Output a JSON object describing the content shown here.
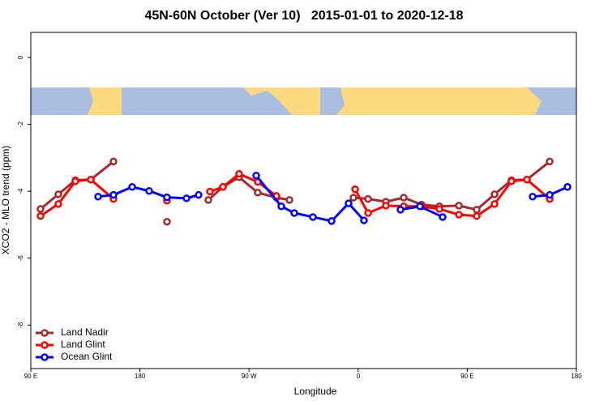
{
  "chart_data": {
    "type": "line",
    "title": "45N-60N October (Ver 10)   2015-01-01 to 2020-12-18",
    "xlabel": "Longitude",
    "ylabel": "XCO2 - MLO trend (ppm)",
    "xlim": [
      90,
      540
    ],
    "ylim": [
      -9.3,
      0.75
    ],
    "xticks": [
      {
        "value": 90,
        "label": "90 E"
      },
      {
        "value": 180,
        "label": "180"
      },
      {
        "value": 270,
        "label": "90 W"
      },
      {
        "value": 360,
        "label": "0"
      },
      {
        "value": 450,
        "label": "90 E"
      },
      {
        "value": 540,
        "label": "180"
      }
    ],
    "yticks": [
      0,
      -2,
      -4,
      -6,
      -8
    ],
    "legend": "bottomleft",
    "series": [
      {
        "name": "Land Nadir",
        "color": "#a52a2a",
        "x": [
          98,
          112.7,
          126.8,
          139.5,
          158.2,
          null,
          202.3,
          null,
          236.4,
          248.5,
          261.8,
          277.2,
          292.6,
          303.3,
          null,
          356.1,
          368.2,
          382.9,
          397.6,
          412.3,
          427,
          443.1,
          457.8,
          472.5,
          486.5,
          499.2,
          518
        ],
        "values": [
          -4.53,
          -4.09,
          -3.67,
          -3.65,
          -3.11,
          null,
          -4.91,
          null,
          -4.26,
          -3.87,
          -3.58,
          -4.04,
          -4.19,
          -4.26,
          null,
          -4.19,
          -4.23,
          -4.31,
          -4.19,
          -4.4,
          -4.45,
          -4.43,
          -4.55,
          -4.09,
          -3.67,
          -3.65,
          -3.11
        ]
      },
      {
        "name": "Land Glint",
        "color": "#ff0000",
        "x": [
          98,
          112.7,
          126.8,
          139.5,
          158.2,
          null,
          202.3,
          null,
          237.8,
          248.5,
          261.8,
          277.2,
          292.6,
          null,
          357.5,
          368.2,
          382.9,
          397.6,
          412.3,
          427,
          443.1,
          457.8,
          472.5,
          486.5,
          499.2,
          518
        ],
        "values": [
          -4.74,
          -4.38,
          -3.7,
          -3.65,
          -4.23,
          null,
          -4.28,
          null,
          -4.01,
          -3.87,
          -3.48,
          -3.72,
          -4.14,
          null,
          -3.94,
          -4.65,
          -4.43,
          -4.45,
          -4.45,
          -4.53,
          -4.7,
          -4.74,
          -4.38,
          -3.7,
          -3.65,
          -4.23
        ]
      },
      {
        "name": "Ocean Glint",
        "color": "#0000ff",
        "x": [
          145.5,
          158.2,
          173.6,
          187.6,
          202.3,
          218.4,
          228.4,
          null,
          275.9,
          296.6,
          307.3,
          322.7,
          338.1,
          352.1,
          364.8,
          null,
          394.9,
          411,
          429.7,
          null,
          503.9,
          518,
          532.7
        ],
        "values": [
          -4.16,
          -4.11,
          -3.87,
          -3.99,
          -4.18,
          -4.21,
          -4.11,
          null,
          -3.53,
          -4.45,
          -4.65,
          -4.77,
          -4.89,
          -4.36,
          -4.87,
          null,
          -4.55,
          -4.45,
          -4.77,
          null,
          -4.16,
          -4.11,
          -3.87
        ]
      }
    ]
  }
}
